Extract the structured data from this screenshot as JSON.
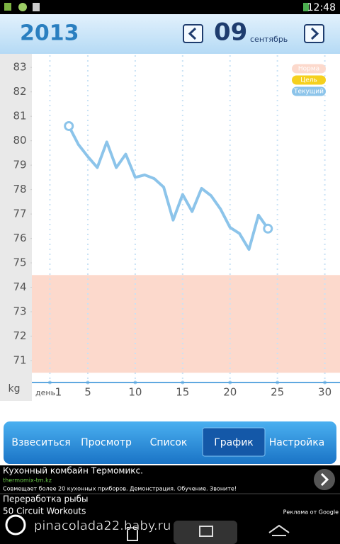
{
  "status_bar": {
    "time": "12:48"
  },
  "header": {
    "year": "2013",
    "day": "09",
    "month": "сентябрь"
  },
  "chart_data": {
    "type": "line",
    "x_label": "день",
    "y_label": "kg",
    "x": [
      3,
      4,
      5,
      6,
      7,
      8,
      9,
      10,
      11,
      12,
      13,
      14,
      15,
      16,
      17,
      18,
      19,
      20,
      21,
      22,
      23,
      24
    ],
    "series": [
      {
        "name": "Текущий",
        "color": "#8cc4ea",
        "values": [
          80.6,
          79.85,
          79.35,
          78.9,
          79.95,
          78.9,
          79.45,
          78.5,
          78.6,
          78.45,
          78.1,
          76.75,
          77.8,
          77.1,
          78.05,
          77.75,
          77.2,
          76.45,
          76.2,
          75.55,
          76.95,
          76.4
        ]
      }
    ],
    "norm": {
      "name": "Норма",
      "color": "#fcd9cc",
      "range": [
        70.5,
        74.5
      ]
    },
    "goal": {
      "name": "Цель",
      "color": "#f5d01e"
    },
    "xlim": [
      -0.9,
      31.6
    ],
    "ylim": [
      70.1,
      83.5
    ],
    "xticks": [
      1,
      5,
      10,
      15,
      20,
      25,
      30
    ],
    "yticks": [
      71,
      72,
      73,
      74,
      75,
      76,
      77,
      78,
      79,
      80,
      81,
      82,
      83
    ],
    "grid": true,
    "legend": "upper right"
  },
  "tabs": [
    "Взвеситься",
    "Просмотр",
    "Список",
    "График",
    "Настройка"
  ],
  "selected_tab": 3,
  "ad": {
    "title": "Кухонный комбайн Термомикс.",
    "url": "thermomix-tm.kz",
    "text": "Совмещает более 20 кухонных приборов. Демонстрация. Обучение. Звоните!",
    "item2": "Переработка рыбы",
    "item3": "50 Circuit Workouts",
    "credit": "Реклама от Google"
  },
  "watermark": "pinacolada22.baby.ru"
}
